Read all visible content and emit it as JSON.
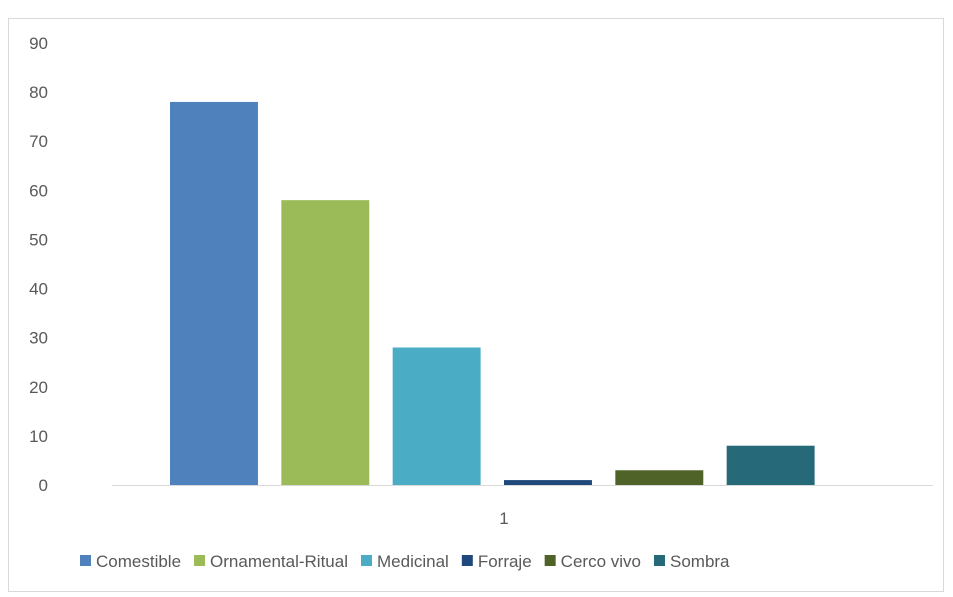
{
  "chart_data": {
    "type": "bar",
    "categories": [
      "1"
    ],
    "series": [
      {
        "name": "Comestible",
        "values": [
          78
        ],
        "color": "#4f81bd"
      },
      {
        "name": "Ornamental-Ritual",
        "values": [
          58
        ],
        "color": "#9bbb59"
      },
      {
        "name": "Medicinal",
        "values": [
          28
        ],
        "color": "#4bacc6"
      },
      {
        "name": "Forraje",
        "values": [
          1
        ],
        "color": "#1f497d"
      },
      {
        "name": "Cerco vivo",
        "values": [
          3
        ],
        "color": "#4f6228"
      },
      {
        "name": "Sombra",
        "values": [
          8
        ],
        "color": "#266a7a"
      }
    ],
    "title": "",
    "xlabel": "",
    "ylabel": "",
    "ylim": [
      0,
      90
    ],
    "yticks": [
      "0",
      "10",
      "20",
      "30",
      "40",
      "50",
      "60",
      "70",
      "80",
      "90"
    ],
    "grid": false,
    "legend_position": "bottom"
  }
}
